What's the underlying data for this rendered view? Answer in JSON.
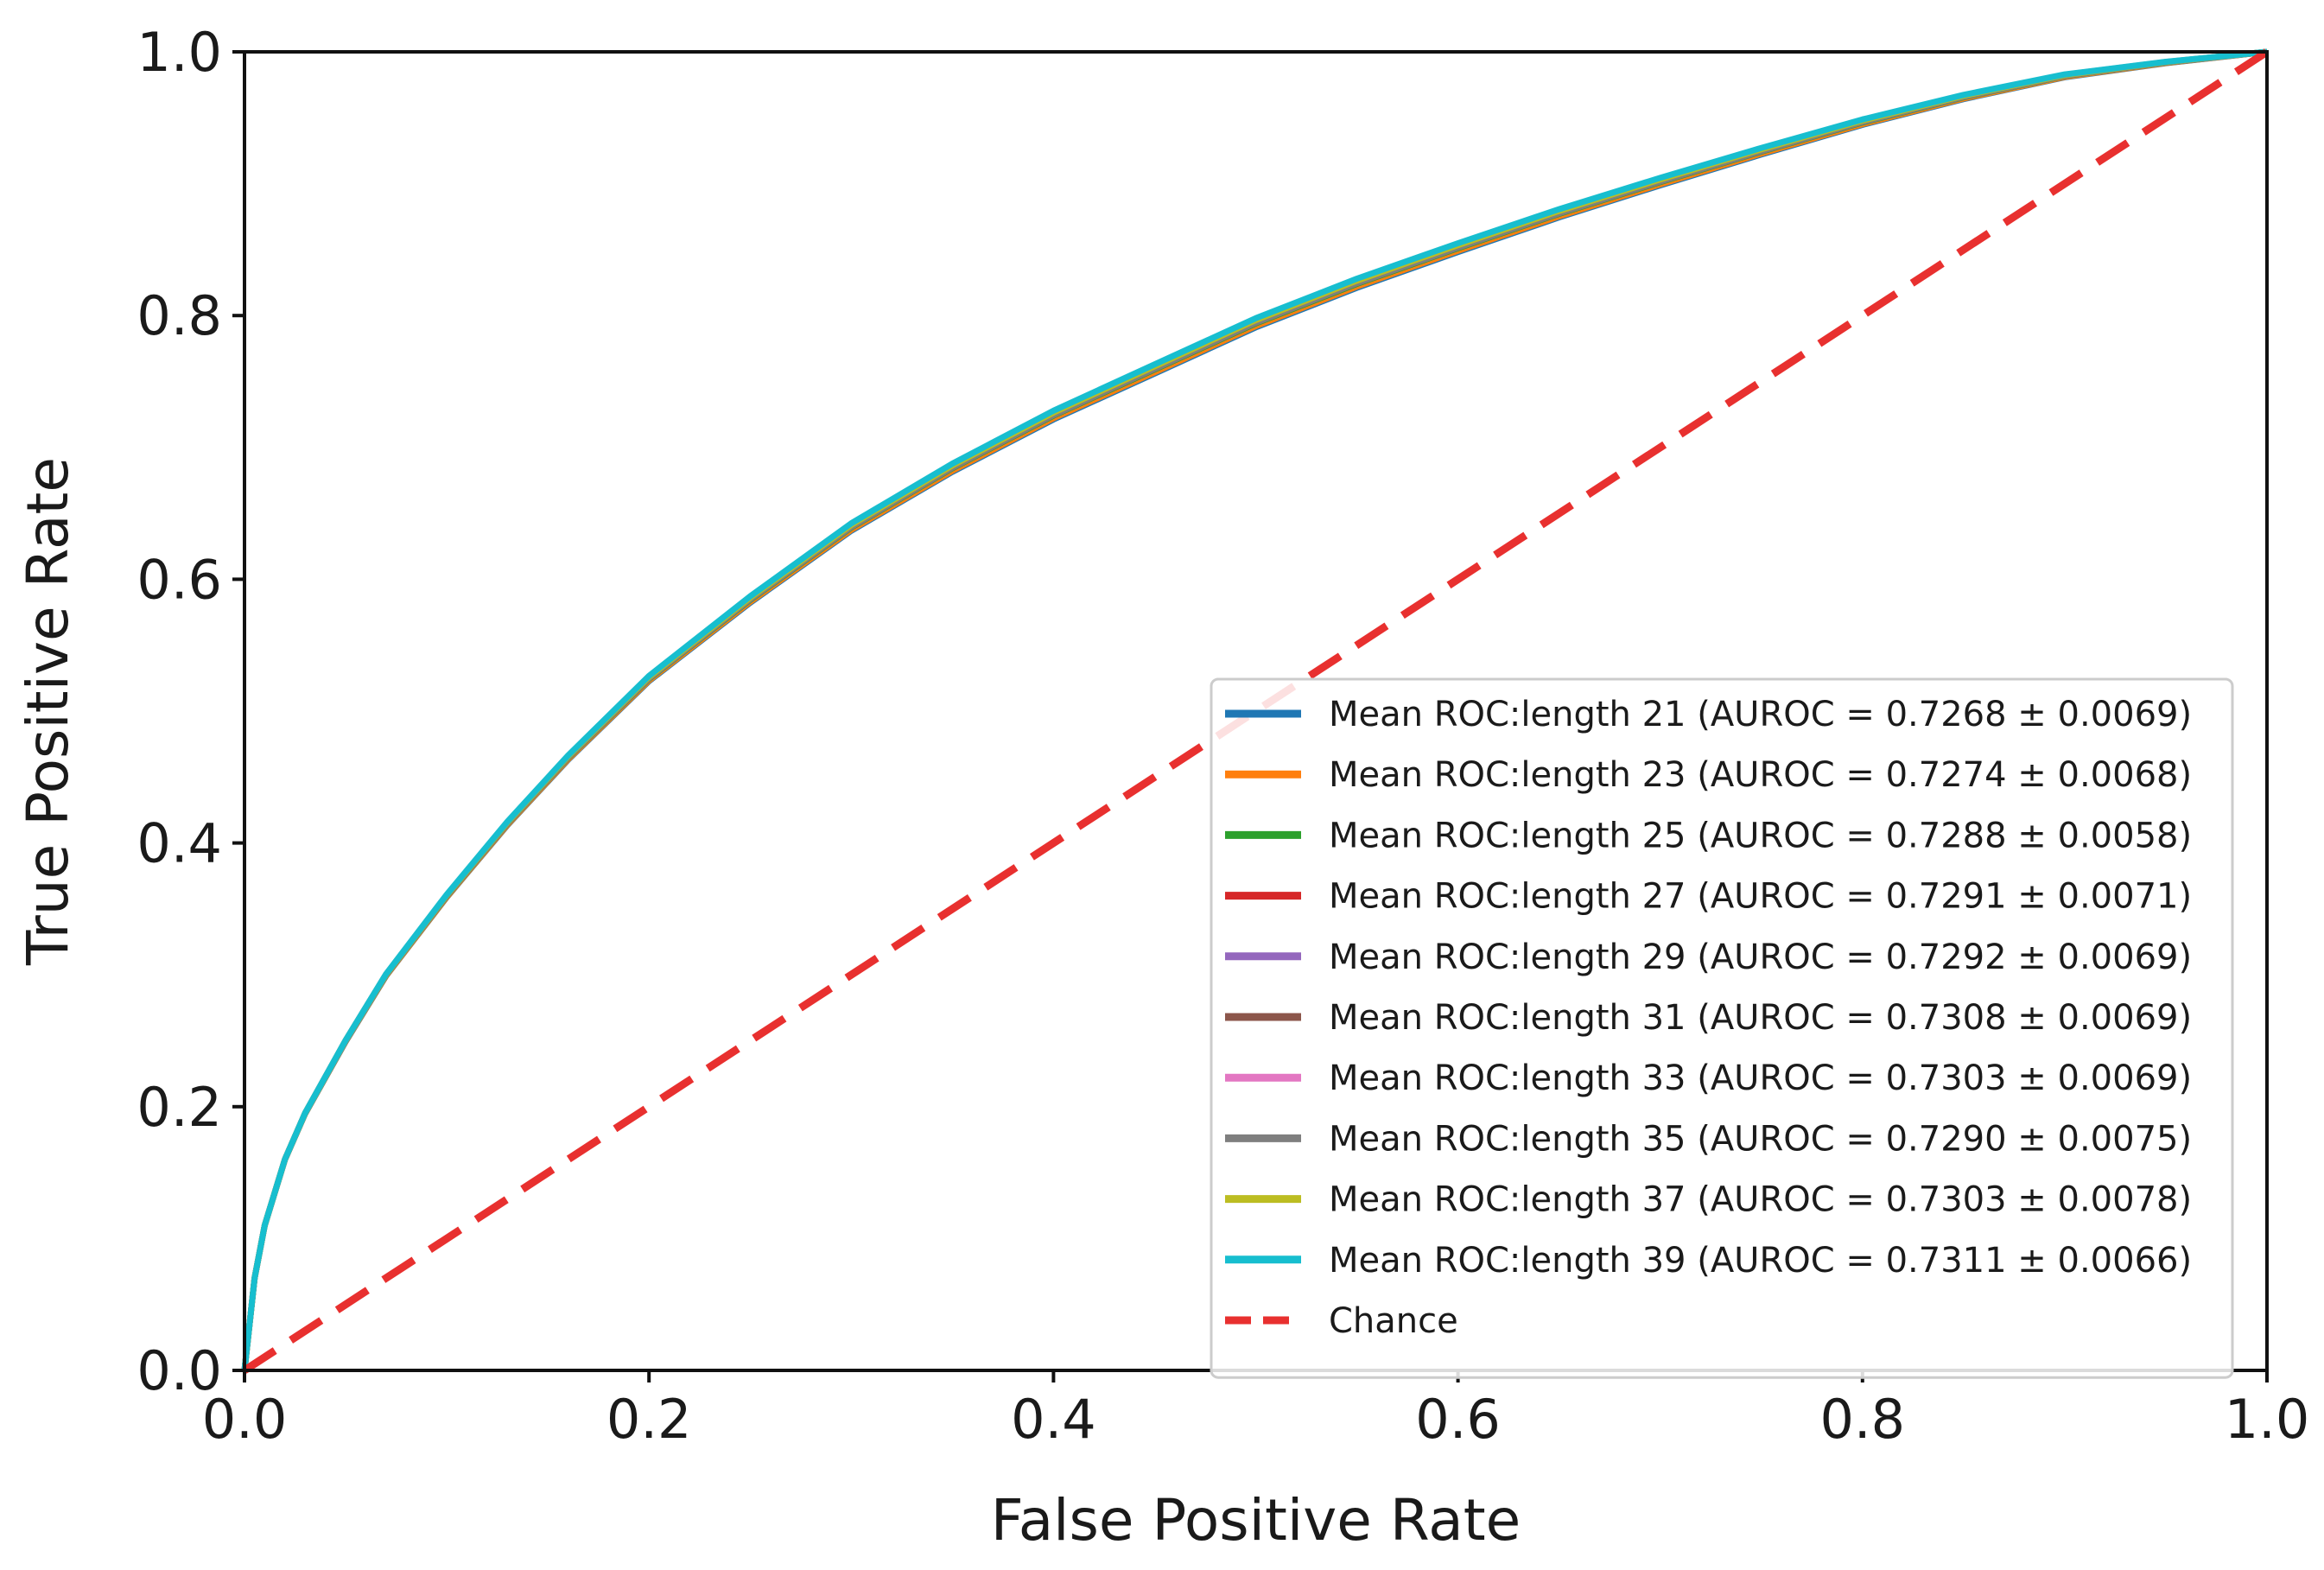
{
  "chart_data": {
    "type": "line",
    "title": "",
    "xlabel": "False Positive Rate",
    "ylabel": "True Positive Rate",
    "xlim": [
      0.0,
      1.0
    ],
    "ylim": [
      0.0,
      1.0
    ],
    "x_ticks": [
      "0.0",
      "0.2",
      "0.4",
      "0.6",
      "0.8",
      "1.0"
    ],
    "y_ticks": [
      "0.0",
      "0.2",
      "0.4",
      "0.6",
      "0.8",
      "1.0"
    ],
    "grid": false,
    "legend_position": "lower-right",
    "roc_points": {
      "x": [
        0.0,
        0.005,
        0.01,
        0.02,
        0.03,
        0.05,
        0.07,
        0.1,
        0.13,
        0.16,
        0.2,
        0.25,
        0.3,
        0.35,
        0.4,
        0.45,
        0.5,
        0.55,
        0.6,
        0.65,
        0.7,
        0.75,
        0.8,
        0.85,
        0.9,
        0.95,
        1.0
      ],
      "y": [
        0.0,
        0.07,
        0.11,
        0.16,
        0.195,
        0.25,
        0.3,
        0.36,
        0.415,
        0.465,
        0.525,
        0.585,
        0.64,
        0.685,
        0.725,
        0.76,
        0.795,
        0.825,
        0.852,
        0.878,
        0.902,
        0.925,
        0.947,
        0.966,
        0.982,
        0.992,
        1.0
      ]
    },
    "series": [
      {
        "name": "Mean ROC:length 21 (AUROC = 0.7268 ± 0.0069)",
        "color": "#1f77b4",
        "offset": -0.004
      },
      {
        "name": "Mean ROC:length 23 (AUROC = 0.7274 ± 0.0068)",
        "color": "#ff7f0e",
        "offset": -0.003
      },
      {
        "name": "Mean ROC:length 25 (AUROC = 0.7288 ± 0.0058)",
        "color": "#2ca02c",
        "offset": -0.001
      },
      {
        "name": "Mean ROC:length 27 (AUROC = 0.7291 ± 0.0071)",
        "color": "#d62728",
        "offset": 0.0
      },
      {
        "name": "Mean ROC:length 29 (AUROC = 0.7292 ± 0.0069)",
        "color": "#9467bd",
        "offset": 0.0
      },
      {
        "name": "Mean ROC:length 31 (AUROC = 0.7308 ± 0.0069)",
        "color": "#8c564b",
        "offset": 0.002
      },
      {
        "name": "Mean ROC:length 33 (AUROC = 0.7303 ± 0.0069)",
        "color": "#e377c2",
        "offset": 0.0015
      },
      {
        "name": "Mean ROC:length 35 (AUROC = 0.7290 ± 0.0075)",
        "color": "#7f7f7f",
        "offset": -0.0005
      },
      {
        "name": "Mean ROC:length 37 (AUROC = 0.7303 ± 0.0078)",
        "color": "#bcbd22",
        "offset": 0.0015
      },
      {
        "name": "Mean ROC:length 39 (AUROC = 0.7311 ± 0.0066)",
        "color": "#17becf",
        "offset": 0.003
      }
    ],
    "chance": {
      "name": "Chance",
      "color": "#e8302f",
      "x": [
        0.0,
        1.0
      ],
      "y": [
        0.0,
        1.0
      ]
    }
  }
}
